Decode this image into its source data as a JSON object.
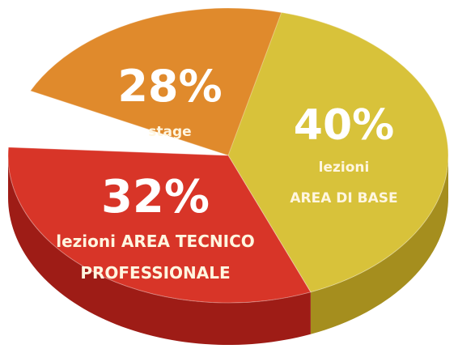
{
  "chart_data": {
    "type": "pie",
    "slices": [
      {
        "value": 28,
        "percent_label": "28%",
        "label_lines": [
          "stage"
        ],
        "color": "#e08a2c",
        "side_color": "#b8621a"
      },
      {
        "value": 40,
        "percent_label": "40%",
        "label_lines": [
          "lezioni",
          "AREA DI BASE"
        ],
        "color": "#d8c23a",
        "side_color": "#a58e1e"
      },
      {
        "value": 32,
        "percent_label": "32%",
        "label_lines": [
          "lezioni AREA TECNICO",
          "PROFESSIONALE"
        ],
        "color": "#d83528",
        "side_color": "#9e1c16"
      }
    ]
  }
}
